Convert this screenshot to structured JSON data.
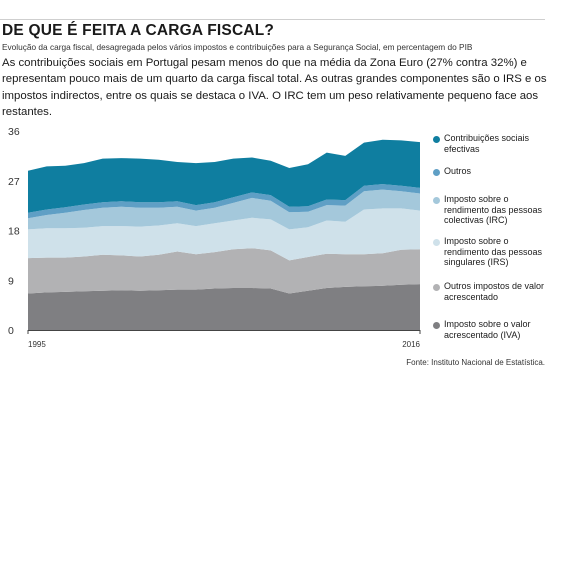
{
  "header": {
    "title": "DE QUE É FEITA A CARGA FISCAL?",
    "subtitle": "Evolução da carga fiscal, desagregada pelos vários impostos e contribuições para a Segurança Social, em percentagem do PIB",
    "description": "As contribuições sociais em Portugal pesam menos do que na média da Zona Euro (27% contra 32%) e representam pouco mais de um quarto da carga fiscal total. As outras grandes componentes são o IRS e os impostos indirectos, entre os quais se destaca o IVA. O IRC tem um peso relativamente pequeno face aos restantes."
  },
  "source": "Fonte: Instituto Nacional de Estatística.",
  "colors": {
    "contribuicoes": "#0f7ea0",
    "outros": "#5f9fc5",
    "irc": "#a4c8db",
    "irs": "#cfe1ea",
    "outros_impostos": "#b2b2b4",
    "iva": "#7f7f82"
  },
  "legend": [
    {
      "key": "contribuicoes",
      "label": "Contribuições sociais efectivas"
    },
    {
      "key": "outros",
      "label": "Outros"
    },
    {
      "key": "irc",
      "label": "Imposto sobre o rendimento das pessoas colectivas (IRC)"
    },
    {
      "key": "irs",
      "label": "Imposto sobre o rendimento das pessoas singulares (IRS)"
    },
    {
      "key": "outros_impostos",
      "label": "Outros impostos de valor acrescentado"
    },
    {
      "key": "iva",
      "label": "Imposto sobre o valor acrescentado (IVA)"
    }
  ],
  "chart_data": {
    "type": "area",
    "stacked": true,
    "title": "",
    "xlabel": "",
    "ylabel": "",
    "x": [
      1995,
      1996,
      1997,
      1998,
      1999,
      2000,
      2001,
      2002,
      2003,
      2004,
      2005,
      2006,
      2007,
      2008,
      2009,
      2010,
      2011,
      2012,
      2013,
      2014,
      2015,
      2016
    ],
    "x_tick_labels": [
      "1995",
      "2016"
    ],
    "y_ticks": [
      0,
      9,
      18,
      27,
      36
    ],
    "ylim": [
      0,
      36
    ],
    "legend_position": "right",
    "grid": false,
    "series": [
      {
        "key": "iva",
        "name": "Imposto sobre o valor acrescentado (IVA)",
        "values": [
          6.6,
          6.8,
          6.9,
          7.0,
          7.1,
          7.2,
          7.1,
          7.2,
          7.3,
          7.3,
          7.5,
          7.6,
          7.6,
          7.5,
          6.6,
          7.1,
          7.6,
          7.8,
          7.9,
          8.0,
          8.2,
          8.3
        ]
      },
      {
        "key": "outros_impostos",
        "name": "Outros impostos de valor acrescentado",
        "values": [
          6.4,
          6.3,
          6.2,
          6.3,
          6.5,
          6.3,
          6.2,
          6.4,
          6.9,
          6.4,
          6.6,
          7.0,
          7.2,
          6.9,
          6.0,
          6.1,
          6.2,
          5.9,
          5.8,
          5.9,
          6.3,
          6.3
        ]
      },
      {
        "key": "irs",
        "name": "Imposto sobre o rendimento das pessoas singulares (IRS)",
        "values": [
          5.2,
          5.3,
          5.3,
          5.2,
          5.2,
          5.3,
          5.4,
          5.3,
          5.1,
          5.1,
          5.2,
          5.2,
          5.5,
          5.6,
          5.6,
          5.4,
          6.0,
          5.9,
          8.1,
          8.1,
          7.5,
          7.0
        ]
      },
      {
        "key": "irc",
        "name": "Imposto sobre o rendimento das pessoas colectivas (IRC)",
        "values": [
          2.0,
          2.4,
          2.8,
          3.2,
          3.3,
          3.5,
          3.4,
          3.2,
          3.0,
          2.8,
          2.8,
          3.2,
          3.6,
          3.4,
          3.1,
          2.8,
          2.8,
          2.9,
          3.3,
          3.4,
          3.1,
          3.1
        ]
      },
      {
        "key": "outros",
        "name": "Outros",
        "values": [
          1.0,
          1.0,
          1.0,
          1.0,
          1.0,
          1.0,
          1.0,
          1.0,
          1.0,
          1.0,
          1.0,
          1.0,
          1.0,
          1.0,
          1.0,
          1.0,
          1.0,
          1.0,
          1.0,
          1.0,
          1.0,
          1.0
        ]
      },
      {
        "key": "contribuicoes",
        "name": "Contribuições sociais efectivas",
        "values": [
          7.6,
          7.8,
          7.5,
          7.5,
          7.9,
          7.8,
          7.9,
          7.7,
          7.1,
          7.6,
          7.3,
          7.0,
          6.3,
          6.2,
          7.0,
          7.6,
          8.5,
          8.0,
          7.8,
          8.0,
          8.2,
          8.3
        ]
      }
    ]
  }
}
